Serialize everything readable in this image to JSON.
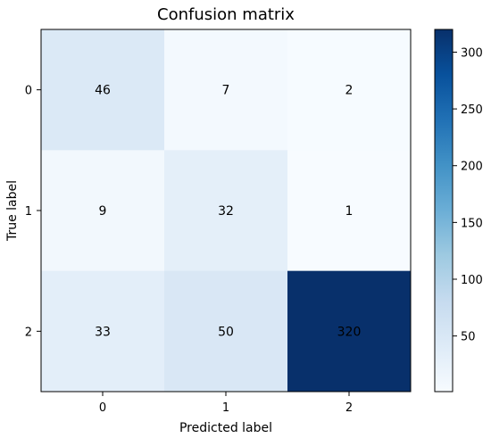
{
  "chart_data": {
    "type": "heatmap",
    "title": "Confusion matrix",
    "xlabel": "Predicted label",
    "ylabel": "True label",
    "x_ticks": [
      "0",
      "1",
      "2"
    ],
    "y_ticks": [
      "0",
      "1",
      "2"
    ],
    "values": [
      [
        46,
        7,
        2
      ],
      [
        9,
        32,
        1
      ],
      [
        33,
        50,
        320
      ]
    ],
    "colormap": "Blues",
    "colorbar": {
      "range": [
        1,
        320
      ],
      "ticks": [
        50,
        100,
        150,
        200,
        250,
        300
      ]
    },
    "colorbar_tick_labels": [
      "50",
      "100",
      "150",
      "200",
      "250",
      "300"
    ],
    "cell_labels": [
      [
        "46",
        "7",
        "2"
      ],
      [
        "9",
        "32",
        "1"
      ],
      [
        "33",
        "50",
        "320"
      ]
    ]
  }
}
